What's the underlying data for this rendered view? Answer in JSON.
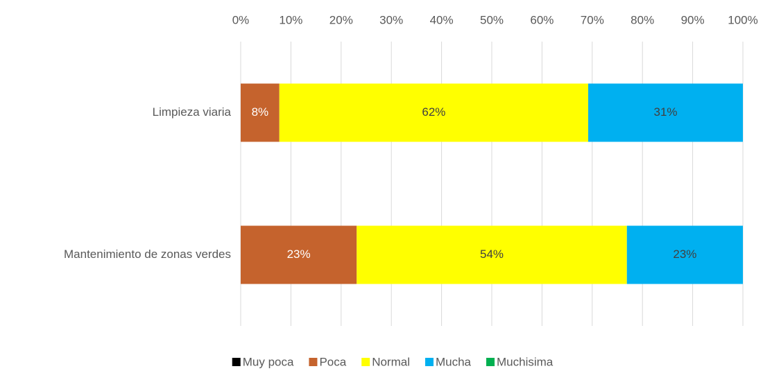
{
  "chart_data": {
    "type": "stacked_bar_horizontal",
    "categories": [
      "Limpieza viaria",
      "Mantenimiento de zonas verdes"
    ],
    "series": [
      {
        "name": "Muy poca",
        "color": "#000000",
        "values": [
          0,
          0
        ]
      },
      {
        "name": "Poca",
        "color": "#c5632d",
        "values": [
          7.7,
          23.1
        ],
        "value_labels": [
          "8%",
          "23%"
        ]
      },
      {
        "name": "Normal",
        "color": "#ffff00",
        "values": [
          61.5,
          53.8
        ],
        "value_labels": [
          "62%",
          "54%"
        ]
      },
      {
        "name": "Mucha",
        "color": "#00b0f0",
        "values": [
          30.8,
          23.1
        ],
        "value_labels": [
          "31%",
          "23%"
        ]
      },
      {
        "name": "Muchisima",
        "color": "#00b050",
        "values": [
          0,
          0
        ]
      }
    ],
    "xlim": [
      0,
      100
    ],
    "xticks": [
      {
        "value": 0,
        "label": "0%"
      },
      {
        "value": 10,
        "label": "10%"
      },
      {
        "value": 20,
        "label": "20%"
      },
      {
        "value": 30,
        "label": "30%"
      },
      {
        "value": 40,
        "label": "40%"
      },
      {
        "value": 50,
        "label": "50%"
      },
      {
        "value": 60,
        "label": "60%"
      },
      {
        "value": 70,
        "label": "70%"
      },
      {
        "value": 80,
        "label": "80%"
      },
      {
        "value": 90,
        "label": "90%"
      },
      {
        "value": 100,
        "label": "100%"
      }
    ],
    "grid": true,
    "legend": "bottom"
  }
}
